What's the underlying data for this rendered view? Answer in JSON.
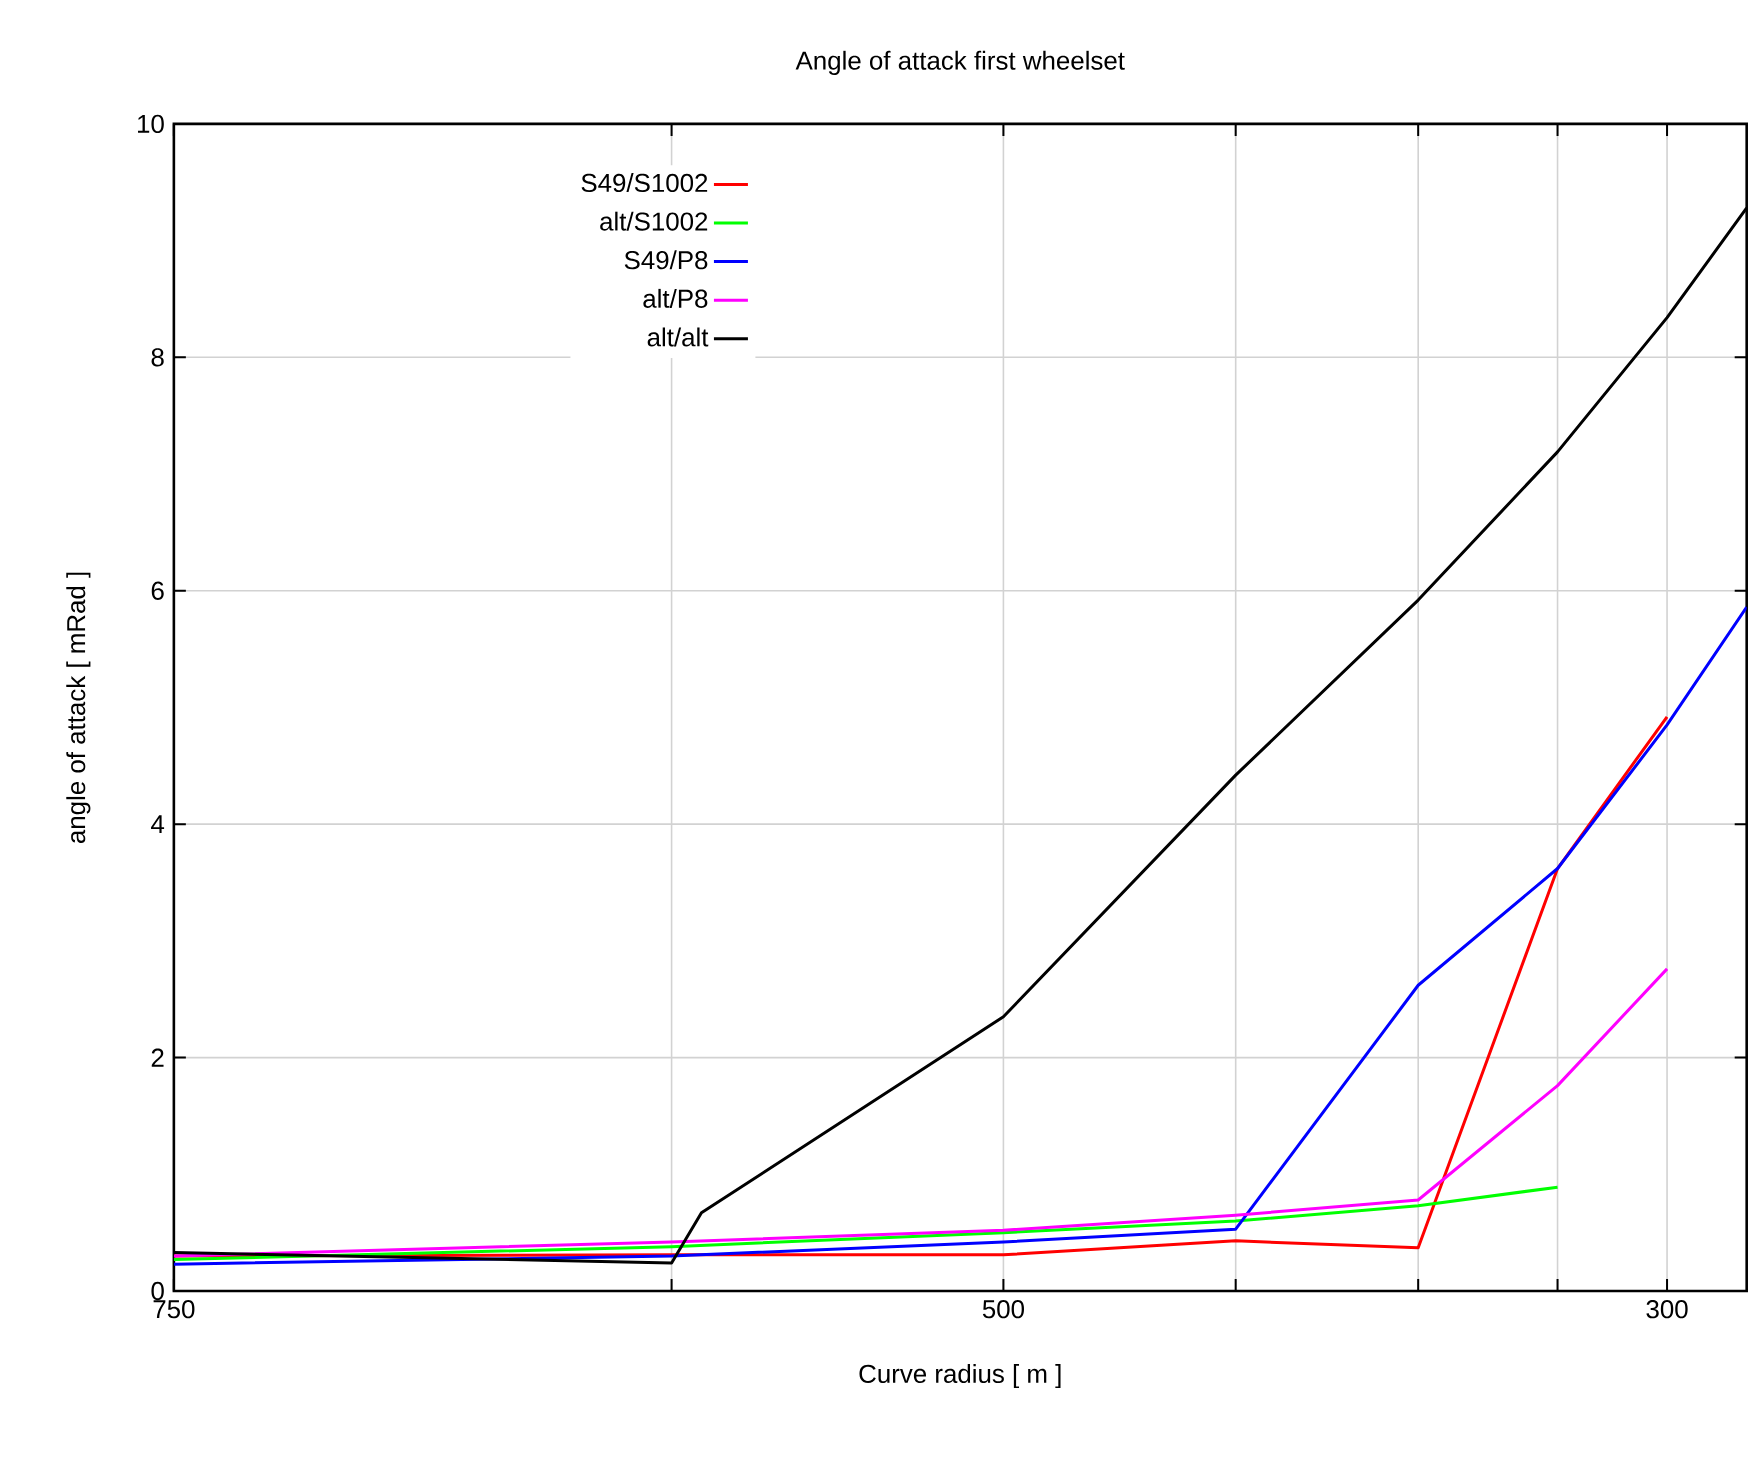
{
  "chart_data": {
    "type": "line",
    "title": "Angle of attack first wheelset",
    "xlabel": "Curve radius [ m ]",
    "ylabel": "angle of attack [ mRad ]",
    "xlim": [
      750,
      276
    ],
    "ylim": [
      0,
      10
    ],
    "xticks": [
      750,
      {
        "value": 600,
        "label": null
      },
      500,
      {
        "value": 430,
        "label": null
      },
      {
        "value": 375,
        "label": null
      },
      {
        "value": 333,
        "label": null
      },
      300
    ],
    "yticks": [
      0,
      2,
      4,
      6,
      8,
      10
    ],
    "grid": true,
    "legend": "top left",
    "marker": "none",
    "line_style": "solid",
    "series": [
      {
        "name": "S49/S1002",
        "color": "#ff0000",
        "x": [
          750,
          600,
          500,
          430,
          375,
          333,
          300
        ],
        "values": [
          0.3,
          0.31,
          0.31,
          0.43,
          0.37,
          3.62,
          4.92
        ]
      },
      {
        "name": "alt/S1002",
        "color": "#00ff00",
        "x": [
          750,
          600,
          500,
          430,
          375,
          333
        ],
        "values": [
          0.27,
          0.38,
          0.5,
          0.6,
          0.73,
          0.89
        ]
      },
      {
        "name": "S49/P8",
        "color": "#0000ff",
        "x": [
          750,
          600,
          500,
          430,
          375,
          333,
          300,
          276
        ],
        "values": [
          0.23,
          0.3,
          0.42,
          0.53,
          2.62,
          3.62,
          4.85,
          5.86
        ]
      },
      {
        "name": "alt/P8",
        "color": "#ff00ff",
        "x": [
          750,
          600,
          500,
          430,
          375,
          333,
          300
        ],
        "values": [
          0.3,
          0.42,
          0.52,
          0.65,
          0.78,
          1.76,
          2.76
        ]
      },
      {
        "name": "alt/alt",
        "color": "#000000",
        "x": [
          750,
          600,
          591,
          500,
          430,
          375,
          333,
          300,
          276
        ],
        "values": [
          0.33,
          0.24,
          0.67,
          2.35,
          4.42,
          5.92,
          7.19,
          8.34,
          9.28
        ]
      }
    ]
  }
}
